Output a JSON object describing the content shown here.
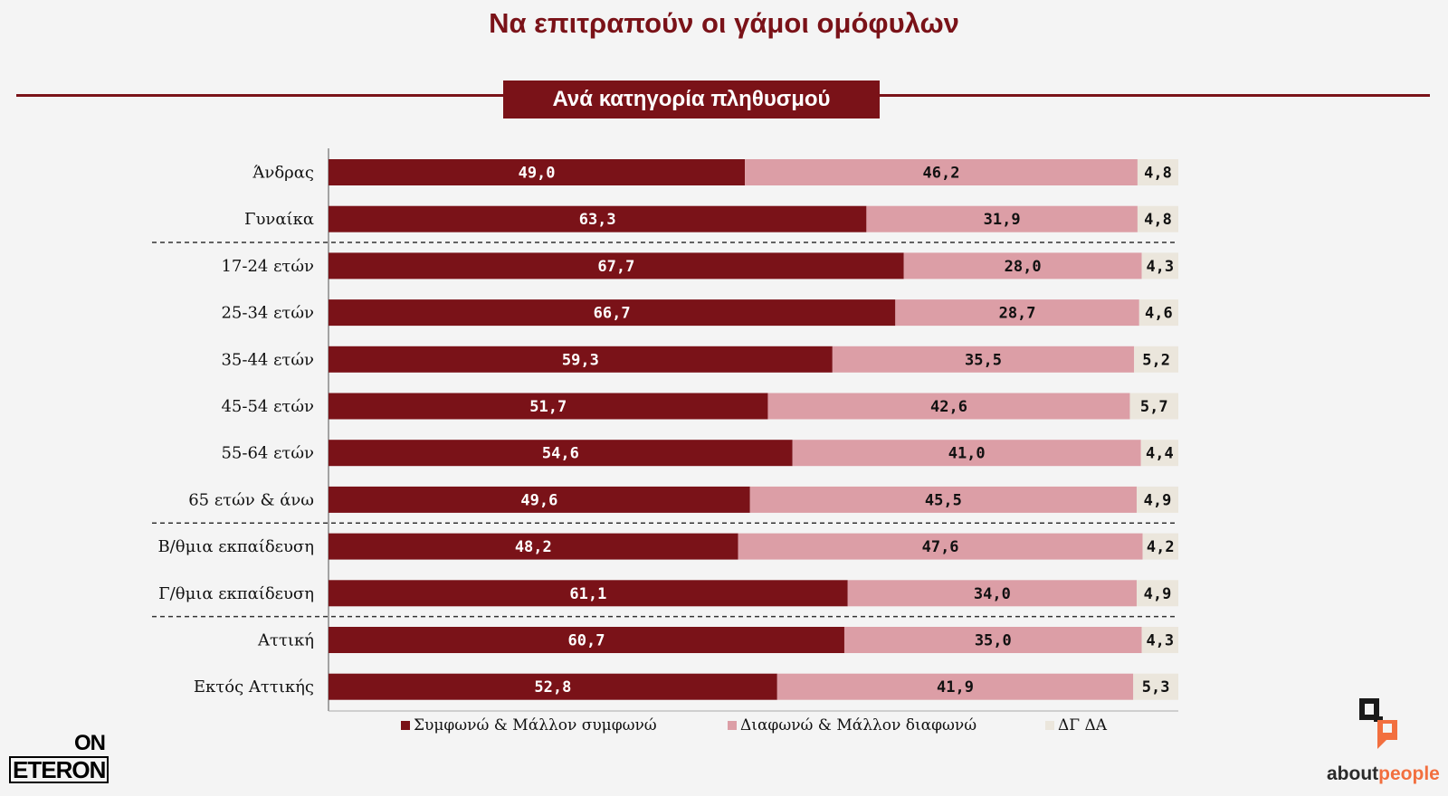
{
  "title": "Να επιτραπούν οι γάμοι ομόφυλων",
  "subtitle": "Ανά κατηγορία πληθυσμού",
  "colors": {
    "accent": "#7a1218",
    "agree": "#7a1218",
    "disagree": "#dc9ea6",
    "dkna": "#ebe6dc"
  },
  "chart_data": {
    "type": "bar",
    "orientation": "horizontal",
    "stacked": true,
    "categories": [
      "Άνδρας",
      "Γυναίκα",
      "17-24 ετών",
      "25-34 ετών",
      "35-44 ετών",
      "45-54 ετών",
      "55-64 ετών",
      "65 ετών & άνω",
      "Β/θμια εκπαίδευση",
      "Γ/θμια εκπαίδευση",
      "Αττική",
      "Εκτός Αττικής"
    ],
    "series": [
      {
        "name": "Συμφωνώ & Μάλλον συμφωνώ",
        "color": "#7a1218",
        "values": [
          49.0,
          63.3,
          67.7,
          66.7,
          59.3,
          51.7,
          54.6,
          49.6,
          48.2,
          61.1,
          60.7,
          52.8
        ],
        "labels": [
          "49,0",
          "63,3",
          "67,7",
          "66,7",
          "59,3",
          "51,7",
          "54,6",
          "49,6",
          "48,2",
          "61,1",
          "60,7",
          "52,8"
        ]
      },
      {
        "name": "Διαφωνώ & Μάλλον διαφωνώ",
        "color": "#dc9ea6",
        "values": [
          46.2,
          31.9,
          28.0,
          28.7,
          35.5,
          42.6,
          41.0,
          45.5,
          47.6,
          34.0,
          35.0,
          41.9
        ],
        "labels": [
          "46,2",
          "31,9",
          "28,0",
          "28,7",
          "35,5",
          "42,6",
          "41,0",
          "45,5",
          "47,6",
          "34,0",
          "35,0",
          "41,9"
        ]
      },
      {
        "name": "ΔΓ ΔΑ",
        "color": "#ebe6dc",
        "values": [
          4.8,
          4.8,
          4.3,
          4.6,
          5.2,
          5.7,
          4.4,
          4.9,
          4.2,
          4.9,
          4.3,
          5.3
        ],
        "labels": [
          "4,8",
          "4,8",
          "4,3",
          "4,6",
          "5,2",
          "5,7",
          "4,4",
          "4,9",
          "4,2",
          "4,9",
          "4,3",
          "5,3"
        ]
      }
    ],
    "group_separators_after": [
      1,
      7,
      9
    ],
    "xlim": [
      0,
      100
    ],
    "legend_position": "bottom",
    "grid": false
  },
  "logos": {
    "left_top": "ON",
    "left_bottom": "ETERON",
    "right_about": "about",
    "right_people": "people"
  }
}
